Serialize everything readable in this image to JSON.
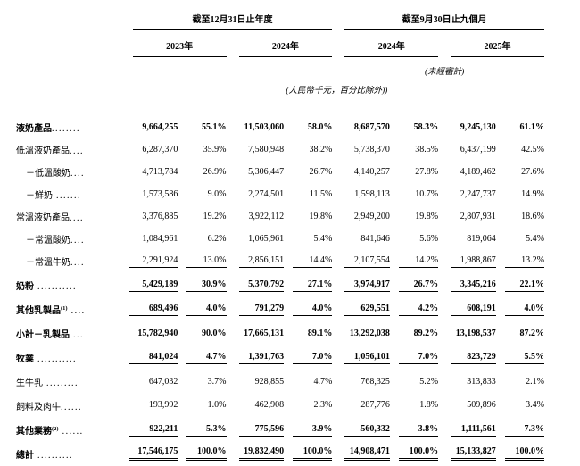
{
  "header": {
    "group1": "截至12月31日止年度",
    "group2": "截至9月30日止九個月",
    "years": [
      "2023年",
      "2024年",
      "2024年",
      "2025年"
    ],
    "unaudited_note": "(未經審計)",
    "unit_note": "(人民幣千元，百分比除外))"
  },
  "table": {
    "rows": [
      {
        "label": "液奶產品",
        "dots": "........",
        "bold": true,
        "indent": false,
        "underline": "none",
        "cells": [
          "9,664,255",
          "55.1%",
          "11,503,060",
          "58.0%",
          "8,687,570",
          "58.3%",
          "9,245,130",
          "61.1%"
        ]
      },
      {
        "label": "低溫液奶產品",
        "dots": "....",
        "bold": false,
        "indent": false,
        "underline": "none",
        "cells": [
          "6,287,370",
          "35.9%",
          "7,580,948",
          "38.2%",
          "5,738,370",
          "38.5%",
          "6,437,199",
          "42.5%"
        ]
      },
      {
        "label": "－低溫酸奶",
        "dots": "....",
        "bold": false,
        "indent": true,
        "underline": "none",
        "cells": [
          "4,713,784",
          "26.9%",
          "5,306,447",
          "26.7%",
          "4,140,257",
          "27.8%",
          "4,189,462",
          "27.6%"
        ]
      },
      {
        "label": "－鮮奶",
        "dots": " .......",
        "bold": false,
        "indent": true,
        "underline": "none",
        "cells": [
          "1,573,586",
          "9.0%",
          "2,274,501",
          "11.5%",
          "1,598,113",
          "10.7%",
          "2,247,737",
          "14.9%"
        ]
      },
      {
        "label": "常溫液奶產品",
        "dots": "....",
        "bold": false,
        "indent": false,
        "underline": "none",
        "cells": [
          "3,376,885",
          "19.2%",
          "3,922,112",
          "19.8%",
          "2,949,200",
          "19.8%",
          "2,807,931",
          "18.6%"
        ]
      },
      {
        "label": "－常溫酸奶",
        "dots": "....",
        "bold": false,
        "indent": true,
        "underline": "none",
        "cells": [
          "1,084,961",
          "6.2%",
          "1,065,961",
          "5.4%",
          "841,646",
          "5.6%",
          "819,064",
          "5.4%"
        ]
      },
      {
        "label": "－常溫牛奶",
        "dots": "....",
        "bold": false,
        "indent": true,
        "underline": "single",
        "cells": [
          "2,291,924",
          "13.0%",
          "2,856,151",
          "14.4%",
          "2,107,554",
          "14.2%",
          "1,988,867",
          "13.2%"
        ]
      },
      {
        "label": "奶粉",
        "dots": " ...........",
        "bold": true,
        "indent": false,
        "underline": "single",
        "cells": [
          "5,429,189",
          "30.9%",
          "5,370,792",
          "27.1%",
          "3,974,917",
          "26.7%",
          "3,345,216",
          "22.1%"
        ]
      },
      {
        "label": "其他乳製品",
        "sup": "(1)",
        "dots": " ....",
        "bold": true,
        "indent": false,
        "underline": "single",
        "cells": [
          "689,496",
          "4.0%",
          "791,279",
          "4.0%",
          "629,551",
          "4.2%",
          "608,191",
          "4.0%"
        ]
      },
      {
        "label": "小計－乳製品",
        "dots": " ...",
        "bold": true,
        "indent": false,
        "underline": "none",
        "cells": [
          "15,782,940",
          "90.0%",
          "17,665,131",
          "89.1%",
          "13,292,038",
          "89.2%",
          "13,198,537",
          "87.2%"
        ]
      },
      {
        "label": "牧業",
        "dots": " ...........",
        "bold": true,
        "indent": false,
        "underline": "single",
        "cells": [
          "841,024",
          "4.7%",
          "1,391,763",
          "7.0%",
          "1,056,101",
          "7.0%",
          "823,729",
          "5.5%"
        ]
      },
      {
        "label": "生牛乳",
        "dots": " .........",
        "bold": false,
        "indent": false,
        "underline": "none",
        "cells": [
          "647,032",
          "3.7%",
          "928,855",
          "4.7%",
          "768,325",
          "5.2%",
          "313,833",
          "2.1%"
        ]
      },
      {
        "label": "飼料及肉牛",
        "dots": "......",
        "bold": false,
        "indent": false,
        "underline": "single",
        "cells": [
          "193,992",
          "1.0%",
          "462,908",
          "2.3%",
          "287,776",
          "1.8%",
          "509,896",
          "3.4%"
        ]
      },
      {
        "label": "其他業務",
        "sup": "(2)",
        "dots": " ......",
        "bold": true,
        "indent": false,
        "underline": "single",
        "cells": [
          "922,211",
          "5.3%",
          "775,596",
          "3.9%",
          "560,332",
          "3.8%",
          "1,111,561",
          "7.3%"
        ]
      },
      {
        "label": "總計",
        "dots": " ..........",
        "bold": true,
        "indent": false,
        "underline": "double",
        "cells": [
          "17,546,175",
          "100.0%",
          "19,832,490",
          "100.0%",
          "14,908,471",
          "100.0%",
          "15,133,827",
          "100.0%"
        ]
      }
    ]
  }
}
